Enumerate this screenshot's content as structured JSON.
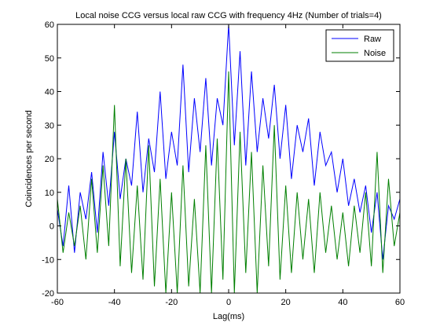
{
  "chart_data": {
    "type": "line",
    "title": "Local noise CCG versus local raw CCG with frequency 4Hz (Number of trials=4)",
    "xlabel": "Lag(ms)",
    "ylabel": "Coincidences per second",
    "xlim": [
      -60,
      60
    ],
    "ylim": [
      -20,
      60
    ],
    "xticks": [
      -60,
      -40,
      -20,
      0,
      20,
      40,
      60
    ],
    "yticks": [
      -20,
      -10,
      0,
      10,
      20,
      30,
      40,
      50,
      60
    ],
    "grid": false,
    "legend_position": "top-right",
    "x": [
      -60,
      -58,
      -56,
      -54,
      -52,
      -50,
      -48,
      -46,
      -44,
      -42,
      -40,
      -38,
      -36,
      -34,
      -32,
      -30,
      -28,
      -26,
      -24,
      -22,
      -20,
      -18,
      -16,
      -14,
      -12,
      -10,
      -8,
      -6,
      -4,
      -2,
      0,
      2,
      4,
      6,
      8,
      10,
      12,
      14,
      16,
      18,
      20,
      22,
      24,
      26,
      28,
      30,
      32,
      34,
      36,
      38,
      40,
      42,
      44,
      46,
      48,
      50,
      52,
      54,
      56,
      58,
      60
    ],
    "series": [
      {
        "name": "Raw",
        "color": "#0000ff",
        "values": [
          5,
          -6,
          12,
          -8,
          10,
          2,
          16,
          -2,
          22,
          6,
          28,
          8,
          20,
          12,
          34,
          10,
          26,
          16,
          40,
          14,
          28,
          18,
          48,
          16,
          38,
          22,
          44,
          18,
          38,
          30,
          60,
          24,
          52,
          18,
          46,
          22,
          38,
          26,
          42,
          20,
          36,
          14,
          30,
          22,
          32,
          12,
          28,
          18,
          22,
          10,
          20,
          6,
          14,
          4,
          12,
          -2,
          10,
          -10,
          6,
          2,
          8
        ]
      },
      {
        "name": "Noise",
        "color": "#007f00",
        "values": [
          8,
          -8,
          4,
          -6,
          6,
          -10,
          14,
          -8,
          18,
          -6,
          36,
          -12,
          20,
          -14,
          12,
          -16,
          24,
          -18,
          14,
          -20,
          10,
          -20,
          18,
          -18,
          8,
          -20,
          24,
          -20,
          26,
          -16,
          46,
          -20,
          28,
          -14,
          22,
          -20,
          18,
          -12,
          30,
          -16,
          12,
          -14,
          10,
          -10,
          8,
          -14,
          10,
          -8,
          6,
          -10,
          4,
          -12,
          6,
          -8,
          10,
          -12,
          22,
          -14,
          14,
          -6,
          4
        ]
      }
    ]
  }
}
